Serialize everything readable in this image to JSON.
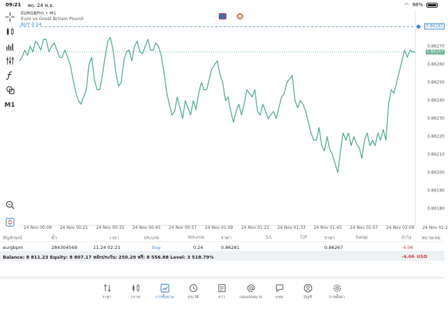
{
  "status_bar": {
    "time": "09:21",
    "date": "พฤ. 24 พ.ย.",
    "battery": "98%"
  },
  "chart_header": {
    "symbol": "EURGBPm • M1",
    "description": "Euro vs Great Britain Pound",
    "position": "BUY 0.24"
  },
  "toolbar": {
    "timeframe": "M1"
  },
  "chart_data": {
    "type": "line",
    "price_axis": [
      "0.86270",
      "0.86260",
      "0.86250",
      "0.86240",
      "0.86230",
      "0.86220",
      "0.86210",
      "0.86200",
      "0.86190",
      "0.86180"
    ],
    "time_axis": [
      "24 Nov 00:09",
      "24 Nov 00:21",
      "24 Nov 00:33",
      "24 Nov 00:45",
      "24 Nov 00:57",
      "24 Nov 01:09",
      "24 Nov 01:21",
      "24 Nov 01:33",
      "24 Nov 01:45",
      "24 Nov 01:57",
      "24 Nov 02:09",
      "24 Nov 02:2"
    ],
    "ylim": [
      0.86175,
      0.86285
    ],
    "buy_price": "0.86281",
    "bid_price": "0.86267",
    "y": [
      0.86262,
      0.86264,
      0.86268,
      0.86265,
      0.8627,
      0.86267,
      0.86273,
      0.86271,
      0.86268,
      0.86274,
      0.86274,
      0.86267,
      0.8627,
      0.86272,
      0.86268,
      0.86264,
      0.86264,
      0.86268,
      0.86264,
      0.8626,
      0.86252,
      0.86245,
      0.8624,
      0.86238,
      0.86242,
      0.86246,
      0.8626,
      0.86264,
      0.86252,
      0.86246,
      0.86246,
      0.86254,
      0.86264,
      0.86273,
      0.86275,
      0.86268,
      0.86256,
      0.86248,
      0.8625,
      0.86262,
      0.86267,
      0.86268,
      0.86262,
      0.8627,
      0.86273,
      0.86267,
      0.86266,
      0.8627,
      0.86274,
      0.86268,
      0.86268,
      0.86272,
      0.8627,
      0.86265,
      0.86256,
      0.86245,
      0.86238,
      0.86232,
      0.86234,
      0.86242,
      0.86236,
      0.8623,
      0.8624,
      0.86236,
      0.86232,
      0.8624,
      0.86235,
      0.86244,
      0.8625,
      0.86246,
      0.86246,
      0.86252,
      0.86258,
      0.8626,
      0.86262,
      0.86254,
      0.8625,
      0.8624,
      0.86242,
      0.86234,
      0.86228,
      0.86234,
      0.86238,
      0.86232,
      0.86238,
      0.86246,
      0.86244,
      0.86242,
      0.86246,
      0.86234,
      0.86232,
      0.86238,
      0.86234,
      0.8623,
      0.86232,
      0.86234,
      0.8623,
      0.86236,
      0.86242,
      0.86244,
      0.8625,
      0.86252,
      0.86254,
      0.8624,
      0.86236,
      0.8624,
      0.86238,
      0.86234,
      0.86228,
      0.86222,
      0.86218,
      0.86218,
      0.86225,
      0.86215,
      0.86212,
      0.8622,
      0.86213,
      0.8621,
      0.86205,
      0.862,
      0.86212,
      0.86222,
      0.86218,
      0.86222,
      0.86215,
      0.8622,
      0.86216,
      0.86214,
      0.86208,
      0.86218,
      0.86222,
      0.86215,
      0.86218,
      0.86215,
      0.86222,
      0.86218,
      0.86224,
      0.86218,
      0.86238,
      0.86246,
      0.86244,
      0.8625,
      0.86256,
      0.86262,
      0.86268,
      0.86264,
      0.86268,
      0.86267,
      0.86267
    ]
  },
  "table": {
    "headers": [
      "สัญลักษณ์",
      "ตั๋ว",
      "เวลา",
      "ประเภท",
      "Volume",
      "ราคา",
      "S/L",
      "T/P",
      "ราคา",
      "Swap",
      "กำไร",
      "หมายเหตุ"
    ],
    "row": {
      "symbol": "eurgbpm",
      "ticket": "284304569",
      "time": "11.24 02:21",
      "type": "buy",
      "volume": "0.24",
      "open_price": "0.86281",
      "current_price": "0.86267",
      "profit": "-4.06"
    },
    "balance_text": "Balance: 8 811.23 Equity: 8 807.17 หลักประกัน: 250.29 ฟรี: 8 556.88 Level: 3 518.79%",
    "balance_profit": "-4.06",
    "currency": "USD"
  },
  "nav": [
    {
      "label": "ราคา",
      "icon": "arrows-updown-icon"
    },
    {
      "label": "กราฟ",
      "icon": "candles-icon"
    },
    {
      "label": "การซื้อขาย",
      "icon": "trade-chart-icon",
      "active": true
    },
    {
      "label": "ประวัติ",
      "icon": "history-clock-icon"
    },
    {
      "label": "ข่าว",
      "icon": "news-icon"
    },
    {
      "label": "กล่องจดหมาย",
      "icon": "at-sign-icon"
    },
    {
      "label": "แชท",
      "icon": "chat-bubble-icon"
    },
    {
      "label": "บัญชี",
      "icon": "account-icon"
    },
    {
      "label": "การตั้งค่า",
      "icon": "gear-icon"
    }
  ],
  "colors": {
    "line": "#4cae86",
    "accent": "#3a86c8",
    "negative": "#d23a3a"
  }
}
